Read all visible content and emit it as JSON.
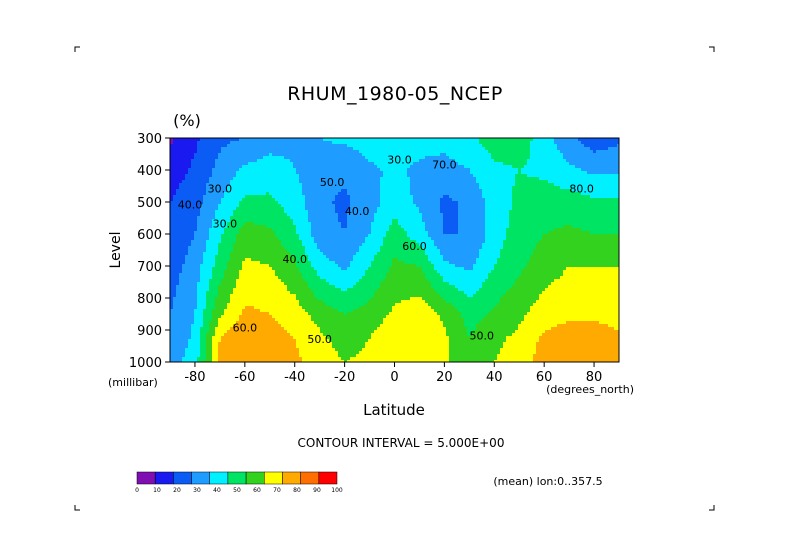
{
  "chart_data": {
    "type": "heatmap",
    "title": "RHUM_1980-05_NCEP",
    "units": "(%)",
    "xlabel": "Latitude",
    "ylabel": "Level",
    "x_unit_left": "(millibar)",
    "x_unit_right": "(degrees_north)",
    "xlim": [
      -90,
      90
    ],
    "ylim": [
      1000,
      300
    ],
    "x_ticks": [
      "-80",
      "-60",
      "-40",
      "-20",
      "0",
      "20",
      "40",
      "60",
      "80"
    ],
    "x_tick_values": [
      -80,
      -60,
      -40,
      -20,
      0,
      20,
      40,
      60,
      80
    ],
    "y_ticks": [
      "300",
      "400",
      "500",
      "600",
      "700",
      "800",
      "900",
      "1000"
    ],
    "y_tick_values": [
      300,
      400,
      500,
      600,
      700,
      800,
      900,
      1000
    ],
    "contour_interval_text": "CONTOUR INTERVAL = 5.000E+00",
    "footer_text": "(mean) lon:0..357.5",
    "contour_labels": [
      "40.0",
      "30.0",
      "50.0",
      "30.0",
      "40.0",
      "50.0",
      "60.0",
      "70.0",
      "80.0",
      "60.0",
      "40.0",
      "30.0",
      "50.0"
    ],
    "x": [
      -90,
      -80,
      -70,
      -60,
      -50,
      -40,
      -30,
      -20,
      -10,
      0,
      10,
      20,
      30,
      40,
      50,
      60,
      70,
      80,
      90
    ],
    "y": [
      1000,
      925,
      850,
      700,
      600,
      500,
      400,
      300
    ],
    "values": [
      [
        35,
        45,
        85,
        90,
        88,
        82,
        75,
        70,
        72,
        78,
        80,
        72,
        62,
        70,
        75,
        85,
        88,
        88,
        85
      ],
      [
        33,
        42,
        80,
        88,
        85,
        80,
        72,
        66,
        70,
        78,
        80,
        72,
        60,
        68,
        72,
        82,
        85,
        85,
        82
      ],
      [
        30,
        40,
        68,
        82,
        80,
        75,
        66,
        60,
        64,
        72,
        76,
        68,
        56,
        62,
        68,
        75,
        78,
        78,
        76
      ],
      [
        25,
        35,
        55,
        72,
        70,
        62,
        45,
        38,
        50,
        62,
        60,
        42,
        38,
        50,
        58,
        65,
        70,
        70,
        70
      ],
      [
        22,
        30,
        48,
        65,
        62,
        52,
        34,
        30,
        40,
        55,
        45,
        30,
        30,
        45,
        55,
        60,
        62,
        60,
        60
      ],
      [
        20,
        26,
        40,
        52,
        52,
        45,
        32,
        28,
        36,
        45,
        38,
        28,
        32,
        45,
        52,
        55,
        55,
        52,
        52
      ],
      [
        15,
        22,
        33,
        42,
        45,
        40,
        35,
        32,
        38,
        42,
        38,
        36,
        40,
        48,
        50,
        48,
        42,
        38,
        38
      ],
      [
        8,
        18,
        28,
        30,
        35,
        38,
        40,
        42,
        45,
        46,
        44,
        44,
        48,
        55,
        55,
        45,
        32,
        24,
        28
      ]
    ],
    "colorbar": {
      "ticks": [
        "0",
        "10",
        "20",
        "30",
        "40",
        "50",
        "60",
        "70",
        "80",
        "90",
        "100"
      ],
      "colors": [
        "#7f0fb0",
        "#1a1af0",
        "#0a5cf5",
        "#1e9cff",
        "#00f0ff",
        "#00e464",
        "#32d21e",
        "#ffff00",
        "#ffaa00",
        "#ff6e00",
        "#ff0000"
      ]
    },
    "grid": false
  }
}
